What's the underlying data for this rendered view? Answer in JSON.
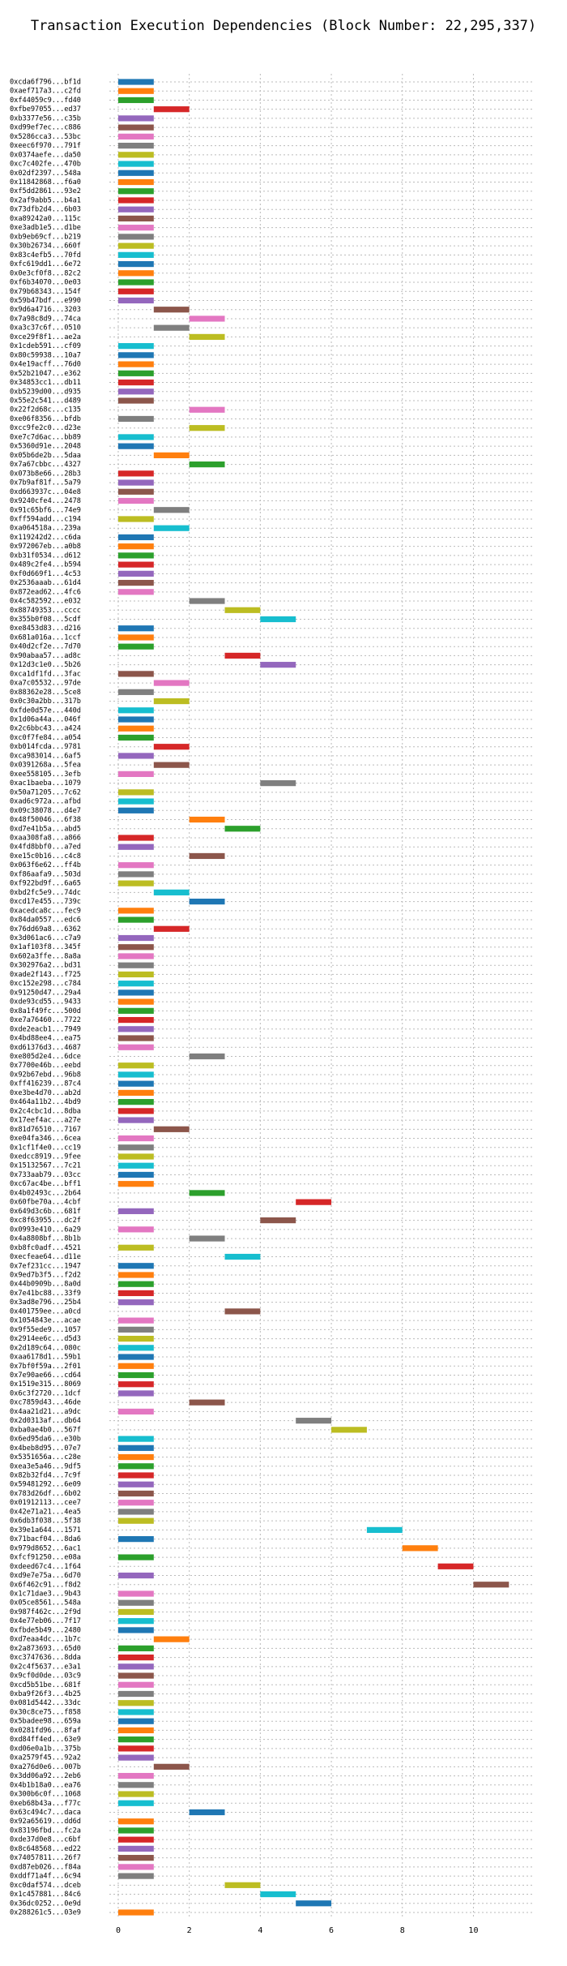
{
  "chart_data": {
    "type": "gantt",
    "title": "Transaction Execution Dependencies (Block Number: 22,295,337)",
    "colors": [
      "#1f77b4",
      "#ff7f0e",
      "#2ca02c",
      "#d62728",
      "#9467bd",
      "#8c564b",
      "#e377c2",
      "#7f7f7f",
      "#bcbd22",
      "#17becf"
    ],
    "xlim": [
      -0.25,
      11.7
    ],
    "xticks": [
      0,
      2,
      4,
      6,
      8,
      10
    ],
    "grid": true,
    "categories": [
      "0xcda6f796...bf1d",
      "0xaef717a3...c2fd",
      "0xf44059c9...fd40",
      "0xfbe97055...ed37",
      "0xb3377e56...c35b",
      "0xd99ef7ec...c886",
      "0x5286cca3...53bc",
      "0xeec6f970...791f",
      "0x0374aefe...da50",
      "0xc7c402fe...470b",
      "0x02df2397...548a",
      "0x11842868...f6a0",
      "0xf5dd2861...93e2",
      "0x2af9abb5...b4a1",
      "0x73dfb2d4...6b03",
      "0xa89242a0...115c",
      "0xe3adb1e5...d1be",
      "0xb9eb69cf...b219",
      "0x30b26734...660f",
      "0x83c4efb5...70fd",
      "0xfc619dd1...6e72",
      "0x0e3cf0f8...82c2",
      "0xf6b34070...0e03",
      "0x79b68343...154f",
      "0x59b47bdf...e990",
      "0x9d6a4716...3203",
      "0x7a98c8d9...74ca",
      "0xa3c37c6f...0510",
      "0xce29f8f1...ae2a",
      "0x1cdeb591...cf09",
      "0x80c59938...10a7",
      "0x4e19acff...76d0",
      "0x52b21047...e362",
      "0x34853cc1...db11",
      "0xb5239d00...d935",
      "0x55e2c541...d489",
      "0x22f2d68c...c135",
      "0xe06f8356...bfdb",
      "0xcc9fe2c0...d23e",
      "0xe7c7d6ac...bb89",
      "0x5360d91e...2048",
      "0x05b6de2b...5daa",
      "0x7a67cbbc...4327",
      "0x073b8e66...28b3",
      "0x7b9af81f...5a79",
      "0xd663937c...04e8",
      "0x9240cfe4...2478",
      "0x91c65bf6...74e9",
      "0xff594add...c194",
      "0xa064518a...239a",
      "0x119242d2...c6da",
      "0x972067eb...a0b8",
      "0xb31f0534...d612",
      "0x489c2fe4...b594",
      "0xf0d669f1...4c53",
      "0x2536aaab...61d4",
      "0x872ead62...4fc6",
      "0x4c582592...e032",
      "0x88749353...cccc",
      "0x355b0f08...5cdf",
      "0xe8453d83...d216",
      "0x681a016a...1ccf",
      "0x40d2cf2e...7d70",
      "0x90abaa57...ad8c",
      "0x12d3c1e0...5b26",
      "0xca1df1fd...3fac",
      "0xa7c05532...97de",
      "0x88362e28...5ce8",
      "0x0c30a2bb...317b",
      "0xfde0d57e...440d",
      "0x1d06a44a...046f",
      "0x2c6bbc43...a424",
      "0xc0f7fe84...a054",
      "0xb014fcda...9781",
      "0xca983014...6af5",
      "0x0391268a...5fea",
      "0xee558105...3efb",
      "0xac1baeba...1079",
      "0x50a71205...7c62",
      "0xad6c972a...afbd",
      "0x09c38078...d4e7",
      "0x48f50046...6f38",
      "0xd7e41b5a...abd5",
      "0xaa308fa8...a866",
      "0x4fd8bbf0...a7ed",
      "0xe15c0b16...c4c8",
      "0x063f6e62...ff4b",
      "0xf86aafa9...503d",
      "0xf922bd9f...6a65",
      "0xbd2fc5e9...74dc",
      "0xcd17e455...739c",
      "0xacedca8c...fec9",
      "0x84da0557...edc6",
      "0x76dd69a8...6362",
      "0x3d061ac6...c7a9",
      "0x1af103f8...345f",
      "0x602a3ffe...8a8a",
      "0x302976a2...bd31",
      "0xade2f143...f725",
      "0xc152e298...c784",
      "0x91250d47...29a4",
      "0xde93cd55...9433",
      "0x8a1f49fc...500d",
      "0xe7a76460...7722",
      "0xde2eacb1...7949",
      "0x4bd88ee4...ea75",
      "0xd61376d3...4687",
      "0xe805d2e4...6dce",
      "0x7700e46b...eebd",
      "0x92b67ebd...96b8",
      "0xff416239...87c4",
      "0xe3be4d70...ab2d",
      "0x464a11b2...4bd9",
      "0x2c4cbc1d...8dba",
      "0x17eef4ac...a27e",
      "0x81d76510...7167",
      "0xe04fa346...6cea",
      "0x1cf1f4e0...cc19",
      "0xedcc8919...9fee",
      "0x15132567...7c21",
      "0x733aab79...03cc",
      "0xc67ac4be...bff1",
      "0x4b02493c...2b64",
      "0x60fbe70a...4cbf",
      "0x649d3c6b...681f",
      "0xc8f63955...dc2f",
      "0x0993e410...6a29",
      "0x4a8808bf...8b1b",
      "0xb8fc0adf...4521",
      "0xecfeae64...d11e",
      "0x7ef231cc...1947",
      "0x9ed7b3f5...f2d2",
      "0x44b0909b...8a0d",
      "0x7e41bc88...33f9",
      "0x3ad8e796...25b4",
      "0x401759ee...a0cd",
      "0x1054843e...acae",
      "0x9f55ede9...1057",
      "0x2914ee6c...d5d3",
      "0x2d189c64...080c",
      "0xaa6178d1...59b1",
      "0x7bf0f59a...2f01",
      "0x7e90ae66...cd64",
      "0x1519e315...8069",
      "0x6c3f2720...1dcf",
      "0xc7859d43...46de",
      "0x4aa21d21...a9dc",
      "0x2d0313af...db64",
      "0xba0ae4b0...567f",
      "0x6ed95da6...e30b",
      "0x4beb8d95...07e7",
      "0x5351656a...c28e",
      "0xea3e5a46...9df5",
      "0x82b32fd4...7c9f",
      "0x59481292...6e09",
      "0x783d26df...6b02",
      "0x01912113...cee7",
      "0x42e71a21...4ea5",
      "0x6db3f038...5f38",
      "0x39e1a644...1571",
      "0x71bacf04...8da6",
      "0x979d8652...6ac1",
      "0xfcf91250...e08a",
      "0xdeed67c4...1f64",
      "0xd9e7e75a...6d70",
      "0x6f462c91...f8d2",
      "0x1c71dae3...9b43",
      "0x05ce8561...548a",
      "0x987f462c...2f9d",
      "0x4e77eb06...7f17",
      "0xfbde5b49...2480",
      "0xd7eaa4dc...1b7c",
      "0x2a873693...65d0",
      "0xc3747636...8dda",
      "0x2c4f5637...e3a1",
      "0x9cf0d0de...03c9",
      "0xcd5b51be...681f",
      "0xba9f26f3...4b25",
      "0x081d5442...33dc",
      "0x30c8ce75...f858",
      "0x5badee98...659a",
      "0x0281fd96...8faf",
      "0xd84ff4ed...63e9",
      "0xd06e0a1b...375b",
      "0xa2579f45...92a2",
      "0xa276d0e6...007b",
      "0x3dd06a92...2eb6",
      "0x4b1b18a0...ea76",
      "0x300b6c0f...1068",
      "0xeb68b43a...f77c",
      "0x63c494c7...daca",
      "0x92a65619...dd6d",
      "0x83196fbd...fc2a",
      "0xde37d0e8...c6bf",
      "0x8c648568...ed22",
      "0x74057811...26f7",
      "0xd87eb026...f84a",
      "0xddf71a4f...6c94",
      "0xc0daf574...dceb",
      "0x1c457881...84c6",
      "0x36dc0252...0e9d",
      "0x288261c5...03e9"
    ],
    "start": [
      0,
      0,
      0,
      1,
      0,
      0,
      0,
      0,
      0,
      0,
      0,
      0,
      0,
      0,
      0,
      0,
      0,
      0,
      0,
      0,
      0,
      0,
      0,
      0,
      0,
      1,
      2,
      1,
      2,
      0,
      0,
      0,
      0,
      0,
      0,
      0,
      2,
      0,
      2,
      0,
      0,
      1,
      2,
      0,
      0,
      0,
      0,
      1,
      0,
      1,
      0,
      0,
      0,
      0,
      0,
      0,
      0,
      2,
      3,
      4,
      0,
      0,
      0,
      3,
      4,
      0,
      1,
      0,
      1,
      0,
      0,
      0,
      0,
      1,
      0,
      1,
      0,
      4,
      0,
      0,
      0,
      2,
      3,
      0,
      0,
      2,
      0,
      0,
      0,
      1,
      2,
      0,
      0,
      1,
      0,
      0,
      0,
      0,
      0,
      0,
      0,
      0,
      0,
      0,
      0,
      0,
      0,
      2,
      0,
      0,
      0,
      0,
      0,
      0,
      0,
      1,
      0,
      0,
      0,
      0,
      0,
      0,
      2,
      5,
      0,
      4,
      0,
      2,
      0,
      3,
      0,
      0,
      0,
      0,
      0,
      3,
      0,
      0,
      0,
      0,
      0,
      0,
      0,
      0,
      0,
      2,
      0,
      5,
      6,
      0,
      0,
      0,
      0,
      0,
      0,
      0,
      0,
      0,
      0,
      7,
      0,
      8,
      0,
      9,
      0,
      10,
      0,
      0,
      0,
      0,
      0,
      1,
      0,
      0,
      0,
      0,
      0,
      0,
      0,
      0,
      0,
      0,
      0,
      0,
      0,
      1,
      0,
      0,
      0,
      0,
      2,
      0,
      0,
      0,
      0,
      0,
      0,
      0,
      3,
      4,
      5,
      0
    ],
    "end": [
      1,
      1,
      1,
      2,
      1,
      1,
      1,
      1,
      1,
      1,
      1,
      1,
      1,
      1,
      1,
      1,
      1,
      1,
      1,
      1,
      1,
      1,
      1,
      1,
      1,
      2,
      3,
      2,
      3,
      1,
      1,
      1,
      1,
      1,
      1,
      1,
      3,
      1,
      3,
      1,
      1,
      2,
      3,
      1,
      1,
      1,
      1,
      2,
      1,
      2,
      1,
      1,
      1,
      1,
      1,
      1,
      1,
      3,
      4,
      5,
      1,
      1,
      1,
      4,
      5,
      1,
      2,
      1,
      2,
      1,
      1,
      1,
      1,
      2,
      1,
      2,
      1,
      5,
      1,
      1,
      1,
      3,
      4,
      1,
      1,
      3,
      1,
      1,
      1,
      2,
      3,
      1,
      1,
      2,
      1,
      1,
      1,
      1,
      1,
      1,
      1,
      1,
      1,
      1,
      1,
      1,
      1,
      3,
      1,
      1,
      1,
      1,
      1,
      1,
      1,
      2,
      1,
      1,
      1,
      1,
      1,
      1,
      3,
      6,
      1,
      5,
      1,
      3,
      1,
      4,
      1,
      1,
      1,
      1,
      1,
      4,
      1,
      1,
      1,
      1,
      1,
      1,
      1,
      1,
      1,
      3,
      1,
      6,
      7,
      1,
      1,
      1,
      1,
      1,
      1,
      1,
      1,
      1,
      1,
      8,
      1,
      9,
      1,
      10,
      1,
      11,
      1,
      1,
      1,
      1,
      1,
      2,
      1,
      1,
      1,
      1,
      1,
      1,
      1,
      1,
      1,
      1,
      1,
      1,
      1,
      2,
      1,
      1,
      1,
      1,
      3,
      1,
      1,
      1,
      1,
      1,
      1,
      1,
      4,
      5,
      6,
      1
    ]
  }
}
